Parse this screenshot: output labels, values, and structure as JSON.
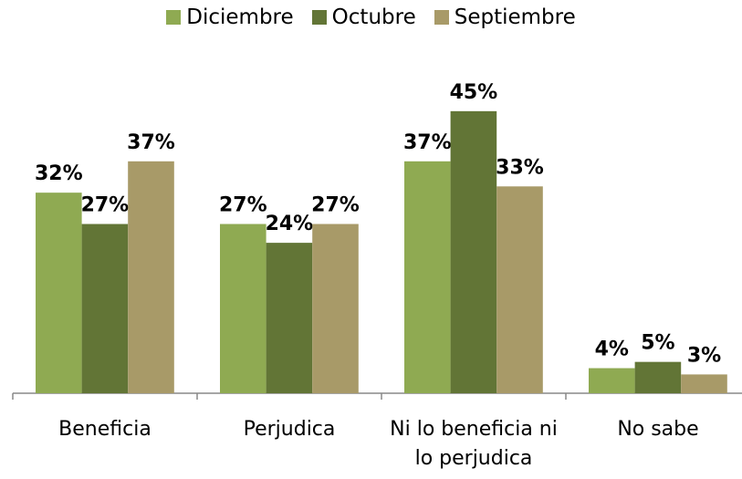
{
  "chart_data": {
    "type": "bar",
    "categories": [
      "Beneficia",
      "Perjudica",
      "Ni lo beneficia ni lo perjudica",
      "No sabe"
    ],
    "series": [
      {
        "name": "Diciembre",
        "color": "#8faa52",
        "values": [
          32,
          27,
          37,
          4
        ],
        "value_labels": [
          "32%",
          "27%",
          "37%",
          "4%"
        ]
      },
      {
        "name": "Octubre",
        "color": "#627536",
        "values": [
          27,
          24,
          45,
          5
        ],
        "value_labels": [
          "27%",
          "24%",
          "45%",
          "5%"
        ]
      },
      {
        "name": "Septiembre",
        "color": "#a89a68",
        "values": [
          37,
          27,
          33,
          3
        ],
        "value_labels": [
          "37%",
          "27%",
          "33%",
          "3%"
        ]
      }
    ]
  }
}
